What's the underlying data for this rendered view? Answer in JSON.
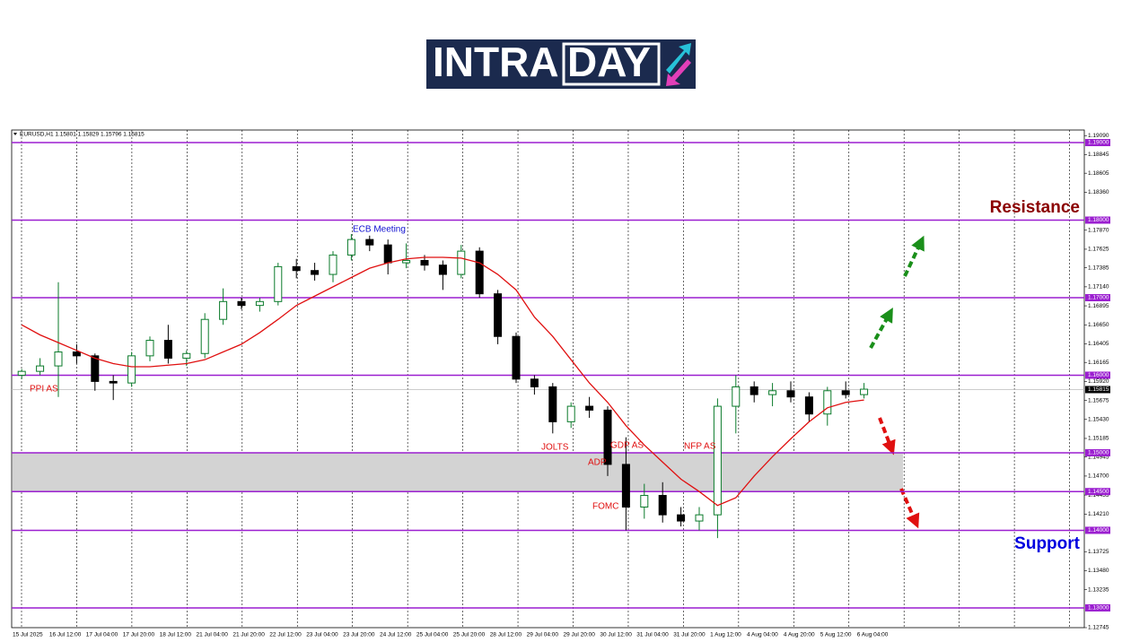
{
  "logo": {
    "part1": "INTRA",
    "part2": "DAY"
  },
  "chart_data": {
    "type": "candlestick",
    "header": "EURUSD,H1  1.15801 1.15829 1.15796 1.15815",
    "up_color": "#0a7a2a",
    "down_color": "#000000",
    "ma_color": "#e01010",
    "open": [
      1.16,
      1.1605,
      1.1612,
      1.163,
      1.1625,
      1.1592,
      1.159,
      1.1625,
      1.1645,
      1.1622,
      1.1628,
      1.1672,
      1.1695,
      1.169,
      1.1695,
      1.174,
      1.1735,
      1.173,
      1.1755,
      1.1775,
      1.1768,
      1.1745,
      1.1748,
      1.1742,
      1.173,
      1.176,
      1.1705,
      1.165,
      1.1595,
      1.1585,
      1.154,
      1.156,
      1.1555,
      1.1485,
      1.143,
      1.1445,
      1.142,
      1.1412,
      1.142,
      1.156,
      1.1585,
      1.1575,
      1.158,
      1.1572,
      1.155,
      1.158,
      1.1575
    ],
    "high": [
      1.1608,
      1.1622,
      1.172,
      1.164,
      1.1628,
      1.16,
      1.163,
      1.165,
      1.1665,
      1.1632,
      1.168,
      1.1712,
      1.17,
      1.17,
      1.1745,
      1.175,
      1.1745,
      1.176,
      1.1782,
      1.178,
      1.1775,
      1.177,
      1.1755,
      1.1748,
      1.1768,
      1.1765,
      1.171,
      1.1655,
      1.16,
      1.159,
      1.1565,
      1.1572,
      1.156,
      1.152,
      1.146,
      1.1462,
      1.143,
      1.143,
      1.157,
      1.16,
      1.1592,
      1.159,
      1.1592,
      1.1578,
      1.1585,
      1.1592,
      1.159
    ],
    "low": [
      1.1595,
      1.16,
      1.1572,
      1.1615,
      1.158,
      1.1568,
      1.1585,
      1.1618,
      1.1615,
      1.1612,
      1.1622,
      1.1665,
      1.1685,
      1.1682,
      1.169,
      1.1725,
      1.1722,
      1.172,
      1.1748,
      1.176,
      1.173,
      1.1738,
      1.1735,
      1.171,
      1.1725,
      1.17,
      1.164,
      1.159,
      1.1575,
      1.1525,
      1.1532,
      1.1545,
      1.147,
      1.14,
      1.1415,
      1.141,
      1.1405,
      1.14,
      1.139,
      1.1525,
      1.1565,
      1.156,
      1.1565,
      1.154,
      1.1535,
      1.157,
      1.157
    ],
    "close": [
      1.1605,
      1.1612,
      1.163,
      1.1625,
      1.1592,
      1.159,
      1.1625,
      1.1645,
      1.1622,
      1.1628,
      1.1672,
      1.1695,
      1.169,
      1.1695,
      1.174,
      1.1735,
      1.173,
      1.1755,
      1.1775,
      1.1768,
      1.1745,
      1.1748,
      1.1742,
      1.173,
      1.176,
      1.1705,
      1.165,
      1.1595,
      1.1585,
      1.154,
      1.156,
      1.1555,
      1.1485,
      1.143,
      1.1445,
      1.142,
      1.1412,
      1.142,
      1.156,
      1.1585,
      1.1575,
      1.158,
      1.1572,
      1.155,
      1.158,
      1.1575,
      1.1582
    ],
    "ma": [
      1.1665,
      1.1652,
      1.1642,
      1.1632,
      1.1622,
      1.1615,
      1.1611,
      1.1611,
      1.1613,
      1.1615,
      1.162,
      1.163,
      1.164,
      1.1655,
      1.1672,
      1.169,
      1.1702,
      1.1714,
      1.1726,
      1.1738,
      1.1745,
      1.175,
      1.1752,
      1.1752,
      1.1751,
      1.1745,
      1.173,
      1.171,
      1.1675,
      1.165,
      1.162,
      1.159,
      1.1565,
      1.1535,
      1.151,
      1.1488,
      1.1466,
      1.145,
      1.1432,
      1.1442,
      1.147,
      1.1495,
      1.1518,
      1.154,
      1.1558,
      1.1565,
      1.1568
    ],
    "ylim": [
      1.12745,
      1.19162
    ],
    "yticks": [
      {
        "value": 1.1909,
        "label": "1.19090"
      },
      {
        "value": 1.18845,
        "label": "1.18845"
      },
      {
        "value": 1.18605,
        "label": "1.18605"
      },
      {
        "value": 1.1836,
        "label": "1.18360"
      },
      {
        "value": 1.1787,
        "label": "1.17870"
      },
      {
        "value": 1.17625,
        "label": "1.17625"
      },
      {
        "value": 1.17385,
        "label": "1.17385"
      },
      {
        "value": 1.1714,
        "label": "1.17140"
      },
      {
        "value": 1.16895,
        "label": "1.16895"
      },
      {
        "value": 1.1665,
        "label": "1.16650"
      },
      {
        "value": 1.16405,
        "label": "1.16405"
      },
      {
        "value": 1.16165,
        "label": "1.16165"
      },
      {
        "value": 1.1592,
        "label": "1.15920"
      },
      {
        "value": 1.15675,
        "label": "1.15675"
      },
      {
        "value": 1.1543,
        "label": "1.15430"
      },
      {
        "value": 1.15185,
        "label": "1.15185"
      },
      {
        "value": 1.14945,
        "label": "1.14945"
      },
      {
        "value": 1.147,
        "label": "1.14700"
      },
      {
        "value": 1.14455,
        "label": "1.14455"
      },
      {
        "value": 1.1421,
        "label": "1.14210"
      },
      {
        "value": 1.13725,
        "label": "1.13725"
      },
      {
        "value": 1.1348,
        "label": "1.13480"
      },
      {
        "value": 1.13235,
        "label": "1.13235"
      },
      {
        "value": 1.12745,
        "label": "1.12745"
      }
    ],
    "levels": [
      {
        "value": 1.19,
        "label": "1.19000"
      },
      {
        "value": 1.18,
        "label": "1.18000"
      },
      {
        "value": 1.17,
        "label": "1.17000"
      },
      {
        "value": 1.16,
        "label": "1.16000"
      },
      {
        "value": 1.15,
        "label": "1.15000"
      },
      {
        "value": 1.145,
        "label": "1.14500"
      },
      {
        "value": 1.14,
        "label": "1.14000"
      },
      {
        "value": 1.13,
        "label": "1.13000"
      }
    ],
    "level_color": "#9b1fd0",
    "current_price": {
      "value": 1.15815,
      "label": "1.15815"
    },
    "zone": [
      1.145,
      1.15
    ],
    "x_labels": [
      "15 Jul 2025",
      "16 Jul 12:00",
      "17 Jul 04:00",
      "17 Jul 20:00",
      "18 Jul 12:00",
      "21 Jul 04:00",
      "21 Jul 20:00",
      "22 Jul 12:00",
      "23 Jul 04:00",
      "23 Jul 20:00",
      "24 Jul 12:00",
      "25 Jul 04:00",
      "25 Jul 20:00",
      "28 Jul 12:00",
      "29 Jul 04:00",
      "29 Jul 20:00",
      "30 Jul 12:00",
      "31 Jul 04:00",
      "31 Jul 20:00",
      "1 Aug 12:00",
      "4 Aug 04:00",
      "4 Aug 20:00",
      "5 Aug 12:00",
      "6 Aug 04:00"
    ],
    "annotations": [
      "PPI AS",
      "ECB Meeting",
      "JOLTS",
      "GDP AS",
      "ADP",
      "FOMC",
      "NFP AS"
    ],
    "resistance": "Resistance",
    "support": "Support"
  }
}
